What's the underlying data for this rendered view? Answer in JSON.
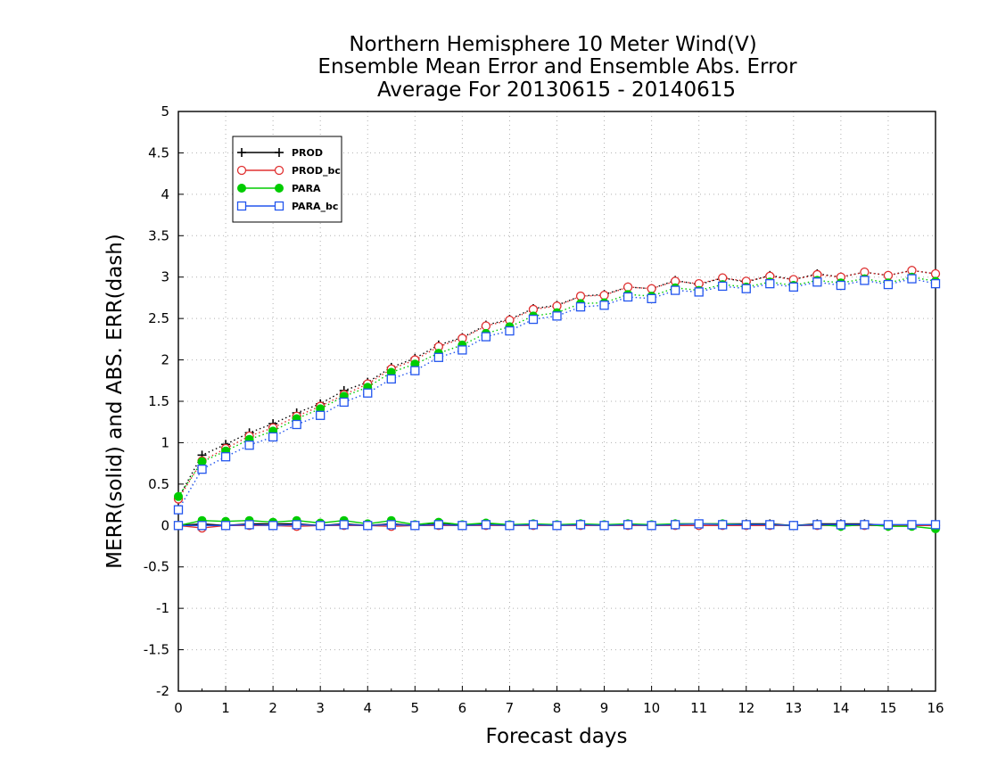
{
  "chart_data": {
    "type": "line",
    "title": [
      "Northern Hemisphere 10 Meter Wind(V)",
      "Ensemble Mean Error and Ensemble Abs. Error",
      "Average For 20130615 - 20140615"
    ],
    "xlabel": "Forecast days",
    "ylabel": "MERR(solid) and ABS. ERR(dash)",
    "xlim": [
      0,
      16
    ],
    "ylim": [
      -2,
      5
    ],
    "xticks": [
      "0",
      "1",
      "2",
      "3",
      "4",
      "5",
      "6",
      "7",
      "8",
      "9",
      "10",
      "11",
      "12",
      "13",
      "14",
      "15",
      "16"
    ],
    "yticks": [
      "-2",
      "-1.5",
      "-1",
      "-0.5",
      "0",
      "0.5",
      "1",
      "1.5",
      "2",
      "2.5",
      "3",
      "3.5",
      "4",
      "4.5",
      "5"
    ],
    "grid": true,
    "legend": "top-left",
    "x": [
      0,
      0.5,
      1,
      1.5,
      2,
      2.5,
      3,
      3.5,
      4,
      4.5,
      5,
      5.5,
      6,
      6.5,
      7,
      7.5,
      8,
      8.5,
      9,
      9.5,
      10,
      10.5,
      11,
      11.5,
      12,
      12.5,
      13,
      13.5,
      14,
      14.5,
      15,
      15.5,
      16
    ],
    "series": [
      {
        "name": "PROD",
        "color": "#000000",
        "marker": "plus",
        "line": "solid",
        "values": [
          0.0,
          0.02,
          0.0,
          0.02,
          0.02,
          0.02,
          0.0,
          0.02,
          0.0,
          0.02,
          0.0,
          0.02,
          0.0,
          0.02,
          0.0,
          0.02,
          0.0,
          0.02,
          0.0,
          0.02,
          0.0,
          0.02,
          0.02,
          0.02,
          0.02,
          0.02,
          0.0,
          0.02,
          0.02,
          0.02,
          0.0,
          0.0,
          0.0
        ]
      },
      {
        "name": "PROD",
        "color": "#000000",
        "marker": "plus",
        "line": "dotted",
        "values": [
          0.33,
          0.85,
          0.98,
          1.12,
          1.23,
          1.36,
          1.47,
          1.63,
          1.73,
          1.91,
          2.02,
          2.18,
          2.27,
          2.42,
          2.49,
          2.62,
          2.66,
          2.77,
          2.79,
          2.88,
          2.86,
          2.96,
          2.91,
          2.99,
          2.94,
          3.02,
          2.97,
          3.04,
          3.0,
          3.06,
          3.02,
          3.08,
          3.04
        ]
      },
      {
        "name": "PROD_bc",
        "color": "#e03030",
        "marker": "circle-open",
        "line": "solid",
        "values": [
          0.0,
          -0.03,
          0.0,
          0.0,
          0.0,
          -0.01,
          0.0,
          0.0,
          0.0,
          -0.01,
          0.0,
          0.0,
          0.0,
          0.0,
          0.0,
          0.0,
          0.0,
          0.0,
          0.0,
          0.0,
          0.0,
          0.0,
          0.0,
          0.0,
          0.0,
          0.0,
          0.0,
          0.0,
          0.0,
          0.0,
          0.0,
          0.0,
          0.0
        ]
      },
      {
        "name": "PROD_bc",
        "color": "#e03030",
        "marker": "circle-open",
        "line": "dotted",
        "values": [
          0.32,
          0.78,
          0.93,
          1.08,
          1.18,
          1.32,
          1.44,
          1.58,
          1.71,
          1.89,
          2.0,
          2.16,
          2.26,
          2.41,
          2.48,
          2.61,
          2.65,
          2.77,
          2.78,
          2.88,
          2.86,
          2.95,
          2.92,
          2.99,
          2.95,
          3.01,
          2.97,
          3.03,
          3.0,
          3.06,
          3.02,
          3.08,
          3.04
        ]
      },
      {
        "name": "PARA",
        "color": "#00cc00",
        "marker": "circle-filled",
        "line": "solid",
        "values": [
          0.0,
          0.06,
          0.05,
          0.06,
          0.04,
          0.06,
          0.03,
          0.06,
          0.02,
          0.06,
          0.01,
          0.04,
          0.01,
          0.03,
          0.01,
          0.02,
          0.01,
          0.02,
          0.01,
          0.02,
          0.01,
          0.02,
          0.02,
          0.02,
          0.01,
          0.01,
          0.0,
          0.01,
          -0.01,
          0.01,
          -0.01,
          -0.01,
          -0.04
        ]
      },
      {
        "name": "PARA",
        "color": "#00cc00",
        "marker": "circle-filled",
        "line": "dotted",
        "values": [
          0.35,
          0.77,
          0.9,
          1.04,
          1.14,
          1.29,
          1.41,
          1.56,
          1.67,
          1.85,
          1.95,
          2.08,
          2.18,
          2.32,
          2.4,
          2.53,
          2.57,
          2.68,
          2.69,
          2.79,
          2.77,
          2.87,
          2.84,
          2.91,
          2.88,
          2.94,
          2.9,
          2.96,
          2.93,
          2.98,
          2.93,
          3.0,
          2.95
        ]
      },
      {
        "name": "PARA_bc",
        "color": "#2255ee",
        "marker": "square-open",
        "line": "solid",
        "values": [
          0.0,
          0.0,
          0.0,
          0.01,
          0.0,
          0.01,
          0.0,
          0.01,
          0.0,
          0.01,
          0.0,
          0.01,
          0.0,
          0.01,
          0.0,
          0.01,
          0.0,
          0.01,
          0.0,
          0.01,
          0.0,
          0.01,
          0.02,
          0.01,
          0.01,
          0.01,
          0.0,
          0.01,
          0.01,
          0.01,
          0.01,
          0.01,
          0.01
        ]
      },
      {
        "name": "PARA_bc",
        "color": "#2255ee",
        "marker": "square-open",
        "line": "dotted",
        "values": [
          0.19,
          0.68,
          0.83,
          0.97,
          1.07,
          1.22,
          1.33,
          1.49,
          1.6,
          1.77,
          1.87,
          2.03,
          2.12,
          2.28,
          2.35,
          2.49,
          2.53,
          2.64,
          2.66,
          2.76,
          2.74,
          2.84,
          2.82,
          2.89,
          2.86,
          2.92,
          2.88,
          2.94,
          2.9,
          2.96,
          2.91,
          2.98,
          2.92
        ]
      }
    ]
  }
}
